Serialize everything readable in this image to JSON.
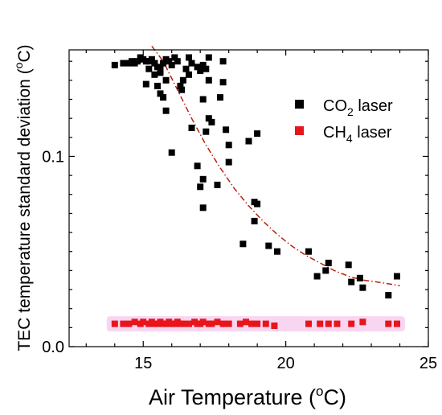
{
  "chart_data": {
    "type": "scatter",
    "xlabel": "Air Temperature (",
    "xlabel_sup": "o",
    "xlabel_end": "C)",
    "ylabel": "TEC temperature standard deviation (",
    "ylabel_sup": "o",
    "ylabel_end": "C)",
    "xlim": [
      12.4,
      25
    ],
    "ylim": [
      0,
      0.156
    ],
    "x_ticks": [
      15,
      20,
      25
    ],
    "y_ticks": [
      0.0,
      0.1
    ],
    "x_tick_labels": [
      "15",
      "20",
      "25"
    ],
    "y_tick_labels": [
      "0.0",
      "0.1"
    ],
    "legend": {
      "placement": "top-right",
      "entries": [
        {
          "prefix": "CO",
          "sub": "2",
          "suffix": " laser",
          "color": "#000000"
        },
        {
          "prefix": "CH",
          "sub": "4",
          "suffix": " laser",
          "color": "#e8151b"
        }
      ]
    },
    "series": [
      {
        "color": "#000000",
        "points": [
          [
            14.0,
            0.148
          ],
          [
            14.3,
            0.149
          ],
          [
            14.5,
            0.149
          ],
          [
            14.6,
            0.15
          ],
          [
            14.7,
            0.149
          ],
          [
            14.8,
            0.15
          ],
          [
            14.9,
            0.152
          ],
          [
            15.0,
            0.151
          ],
          [
            15.1,
            0.15
          ],
          [
            15.2,
            0.15
          ],
          [
            15.3,
            0.151
          ],
          [
            15.4,
            0.149
          ],
          [
            15.5,
            0.147
          ],
          [
            15.6,
            0.146
          ],
          [
            15.7,
            0.149
          ],
          [
            15.8,
            0.151
          ],
          [
            15.9,
            0.15
          ],
          [
            16.0,
            0.148
          ],
          [
            16.1,
            0.152
          ],
          [
            16.2,
            0.15
          ],
          [
            15.2,
            0.146
          ],
          [
            15.4,
            0.143
          ],
          [
            15.6,
            0.144
          ],
          [
            15.8,
            0.14
          ],
          [
            15.1,
            0.138
          ],
          [
            15.5,
            0.137
          ],
          [
            15.6,
            0.133
          ],
          [
            15.7,
            0.131
          ],
          [
            15.8,
            0.124
          ],
          [
            16.3,
            0.137
          ],
          [
            16.35,
            0.135
          ],
          [
            16.4,
            0.14
          ],
          [
            16.5,
            0.146
          ],
          [
            16.6,
            0.152
          ],
          [
            16.7,
            0.149
          ],
          [
            16.6,
            0.143
          ],
          [
            16.9,
            0.147
          ],
          [
            17.0,
            0.145
          ],
          [
            17.1,
            0.148
          ],
          [
            17.2,
            0.146
          ],
          [
            17.3,
            0.152
          ],
          [
            17.3,
            0.14
          ],
          [
            17.8,
            0.15
          ],
          [
            17.1,
            0.13
          ],
          [
            17.7,
            0.131
          ],
          [
            17.8,
            0.139
          ],
          [
            17.2,
            0.113
          ],
          [
            17.3,
            0.12
          ],
          [
            17.4,
            0.118
          ],
          [
            16.7,
            0.115
          ],
          [
            16.0,
            0.102
          ],
          [
            16.9,
            0.095
          ],
          [
            17.1,
            0.088
          ],
          [
            17.0,
            0.084
          ],
          [
            17.6,
            0.085
          ],
          [
            17.1,
            0.073
          ],
          [
            17.9,
            0.114
          ],
          [
            18.0,
            0.106
          ],
          [
            18.0,
            0.097
          ],
          [
            18.7,
            0.108
          ],
          [
            19.0,
            0.112
          ],
          [
            18.9,
            0.076
          ],
          [
            19.0,
            0.075
          ],
          [
            18.9,
            0.066
          ],
          [
            18.5,
            0.054
          ],
          [
            19.4,
            0.053
          ],
          [
            19.7,
            0.05
          ],
          [
            20.8,
            0.05
          ],
          [
            21.1,
            0.037
          ],
          [
            21.4,
            0.04
          ],
          [
            21.5,
            0.044
          ],
          [
            22.2,
            0.043
          ],
          [
            22.3,
            0.034
          ],
          [
            22.6,
            0.036
          ],
          [
            22.7,
            0.031
          ],
          [
            23.6,
            0.027
          ],
          [
            23.9,
            0.037
          ]
        ]
      },
      {
        "color": "#e8151b",
        "points": [
          [
            14.0,
            0.012
          ],
          [
            14.3,
            0.012
          ],
          [
            14.5,
            0.012
          ],
          [
            14.7,
            0.013
          ],
          [
            14.9,
            0.012
          ],
          [
            15.0,
            0.013
          ],
          [
            15.2,
            0.012
          ],
          [
            15.3,
            0.013
          ],
          [
            15.4,
            0.012
          ],
          [
            15.5,
            0.012
          ],
          [
            15.6,
            0.013
          ],
          [
            15.7,
            0.012
          ],
          [
            15.8,
            0.012
          ],
          [
            15.9,
            0.013
          ],
          [
            16.0,
            0.012
          ],
          [
            16.1,
            0.012
          ],
          [
            16.2,
            0.013
          ],
          [
            16.3,
            0.012
          ],
          [
            16.4,
            0.012
          ],
          [
            16.6,
            0.012
          ],
          [
            16.8,
            0.013
          ],
          [
            16.9,
            0.012
          ],
          [
            17.0,
            0.012
          ],
          [
            17.1,
            0.013
          ],
          [
            17.3,
            0.012
          ],
          [
            17.4,
            0.012
          ],
          [
            17.6,
            0.013
          ],
          [
            17.8,
            0.012
          ],
          [
            18.0,
            0.012
          ],
          [
            18.4,
            0.012
          ],
          [
            18.6,
            0.013
          ],
          [
            18.8,
            0.012
          ],
          [
            19.0,
            0.012
          ],
          [
            19.3,
            0.012
          ],
          [
            19.6,
            0.011
          ],
          [
            20.8,
            0.012
          ],
          [
            21.2,
            0.012
          ],
          [
            21.5,
            0.012
          ],
          [
            21.8,
            0.012
          ],
          [
            22.3,
            0.012
          ],
          [
            22.7,
            0.013
          ],
          [
            23.6,
            0.012
          ],
          [
            23.9,
            0.012
          ]
        ]
      }
    ],
    "trend": {
      "color": "#b8220f",
      "points": [
        [
          15.3,
          0.158
        ],
        [
          15.7,
          0.15
        ],
        [
          16.2,
          0.135
        ],
        [
          16.7,
          0.12
        ],
        [
          17.2,
          0.106
        ],
        [
          17.7,
          0.094
        ],
        [
          18.2,
          0.083
        ],
        [
          18.7,
          0.074
        ],
        [
          19.2,
          0.066
        ],
        [
          19.7,
          0.059
        ],
        [
          20.2,
          0.053
        ],
        [
          20.7,
          0.048
        ],
        [
          21.2,
          0.044
        ],
        [
          21.7,
          0.04
        ],
        [
          22.2,
          0.037
        ],
        [
          22.7,
          0.035
        ],
        [
          23.2,
          0.034
        ],
        [
          23.6,
          0.033
        ],
        [
          24.0,
          0.032
        ]
      ]
    }
  }
}
